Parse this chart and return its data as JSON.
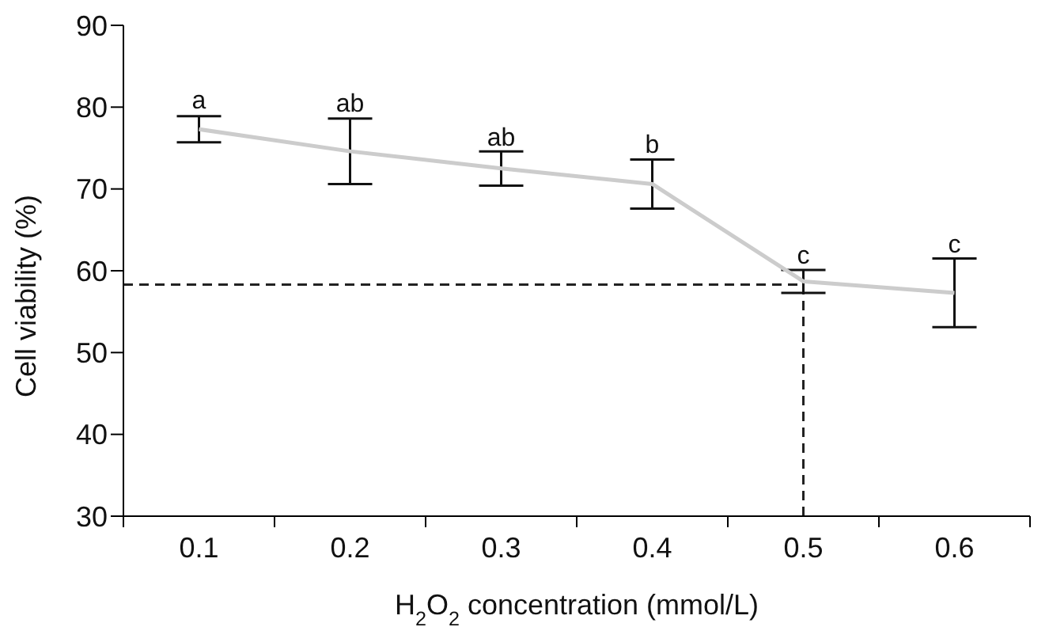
{
  "chart_data": {
    "type": "line",
    "categories": [
      "0.1",
      "0.2",
      "0.3",
      "0.4",
      "0.5",
      "0.6"
    ],
    "series": [
      {
        "color": "#cccccc",
        "values": [
          77.3,
          74.6,
          72.5,
          70.6,
          58.7,
          57.3
        ],
        "errors": [
          1.6,
          4.0,
          2.1,
          3.0,
          1.4,
          4.2
        ]
      }
    ],
    "xlabel": "H$_{2}$O$_{2}$ concentration (mmol/L)",
    "ylabel": "Cell viability (%)",
    "ylim": [
      30,
      90
    ],
    "yticks": [
      30,
      40,
      50,
      60,
      70,
      80,
      90
    ],
    "grid": false,
    "legend": false,
    "marker": "none",
    "line_style": "solid",
    "ref_lines": [
      {
        "axis": "y",
        "value": 58.3,
        "line_style": "dashed",
        "color": "#222222"
      },
      {
        "axis": "x",
        "value": "0.5",
        "line_style": "dashed",
        "color": "#222222"
      }
    ],
    "annotations": [
      {
        "text": "a",
        "x": "0.1",
        "y": 79.1
      },
      {
        "text": "ab",
        "x": "0.2",
        "y": 78.7
      },
      {
        "text": "ab",
        "x": "0.3",
        "y": 74.5
      },
      {
        "text": "b",
        "x": "0.4",
        "y": 73.6
      },
      {
        "text": "c",
        "x": "0.5",
        "y": 60.1
      },
      {
        "text": "c",
        "x": "0.6",
        "y": 61.5
      }
    ]
  }
}
